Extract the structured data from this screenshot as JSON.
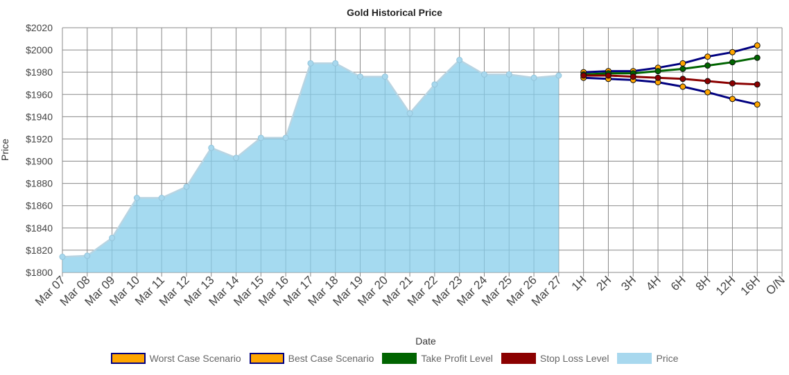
{
  "chart_data": {
    "type": "line",
    "title": "Gold  Historical Price",
    "xlabel": "Date",
    "ylabel": "Price",
    "ylim": [
      1800,
      2020
    ],
    "yticks": [
      1800,
      1820,
      1840,
      1860,
      1880,
      1900,
      1920,
      1940,
      1960,
      1980,
      2000,
      2020
    ],
    "ytick_prefix": "$",
    "grid": true,
    "legend_position": "bottom",
    "categories": [
      "Mar 07",
      "Mar 08",
      "Mar 09",
      "Mar 10",
      "Mar 11",
      "Mar 12",
      "Mar 13",
      "Mar 14",
      "Mar 15",
      "Mar 16",
      "Mar 17",
      "Mar 18",
      "Mar 19",
      "Mar 20",
      "Mar 21",
      "Mar 22",
      "Mar 23",
      "Mar 24",
      "Mar 25",
      "Mar 26",
      "Mar 27",
      "1H",
      "2H",
      "3H",
      "4H",
      "6H",
      "8H",
      "12H",
      "16H",
      "O/N"
    ],
    "series": [
      {
        "name": "Worst Case Scenario",
        "color": "#ffa500",
        "border": "#000080",
        "x": [
          "Mar 27",
          "1H",
          "2H",
          "3H",
          "4H",
          "6H",
          "8H",
          "12H",
          "16H"
        ],
        "values": [
          null,
          1975,
          1974,
          1973,
          1971,
          1967,
          1962,
          1956,
          1951
        ]
      },
      {
        "name": "Best Case Scenario",
        "color": "#ffa500",
        "border": "#000080",
        "x": [
          "Mar 27",
          "1H",
          "2H",
          "3H",
          "4H",
          "6H",
          "8H",
          "12H",
          "16H"
        ],
        "values": [
          null,
          1980,
          1981,
          1981,
          1984,
          1988,
          1994,
          1998,
          2004
        ]
      },
      {
        "name": "Take Profit Level",
        "color": "#006400",
        "x": [
          "Mar 27",
          "1H",
          "2H",
          "3H",
          "4H",
          "6H",
          "8H",
          "12H",
          "16H"
        ],
        "values": [
          null,
          1978,
          1979,
          1979,
          1981,
          1983,
          1986,
          1989,
          1993
        ]
      },
      {
        "name": "Stop Loss Level",
        "color": "#8b0000",
        "x": [
          "Mar 27",
          "1H",
          "2H",
          "3H",
          "4H",
          "6H",
          "8H",
          "12H",
          "16H"
        ],
        "values": [
          null,
          1977,
          1977,
          1976,
          1975,
          1974,
          1972,
          1970,
          1969
        ]
      },
      {
        "name": "Price",
        "color": "#a8d8ee",
        "x": [
          "Mar 07",
          "Mar 08",
          "Mar 09",
          "Mar 10",
          "Mar 11",
          "Mar 12",
          "Mar 13",
          "Mar 14",
          "Mar 15",
          "Mar 16",
          "Mar 17",
          "Mar 18",
          "Mar 19",
          "Mar 20",
          "Mar 21",
          "Mar 22",
          "Mar 23",
          "Mar 24",
          "Mar 25",
          "Mar 26",
          "Mar 27"
        ],
        "values": [
          1814,
          1815,
          1831,
          1867,
          1867,
          1877,
          1912,
          1903,
          1921,
          1921,
          1988,
          1988,
          1976,
          1976,
          1943,
          1969,
          1991,
          1978,
          1978,
          1975,
          1977
        ]
      }
    ]
  }
}
